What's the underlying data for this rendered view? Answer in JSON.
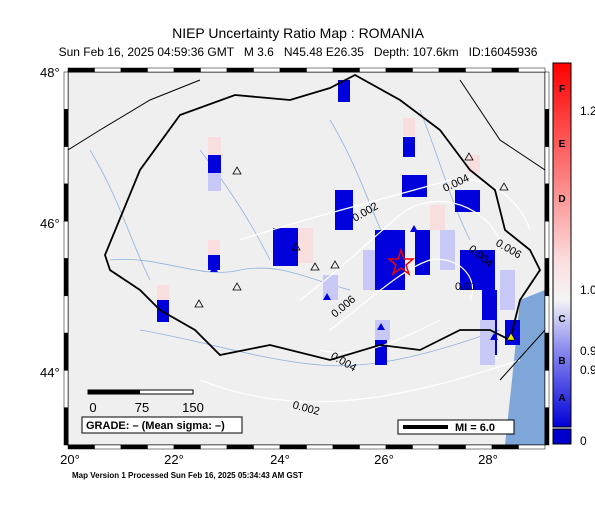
{
  "header": {
    "title": "NIEP Uncertainty Ratio Map : ROMANIA",
    "subtitle": "Sun Feb 16, 2025 04:59:36 GMT   M 3.6   N45.48 E26.35   Depth: 107.6km   ID:16045936"
  },
  "map": {
    "lat_labels": [
      "48°",
      "46°",
      "44°"
    ],
    "lon_labels": [
      "20°",
      "22°",
      "24°",
      "26°",
      "28°"
    ],
    "contour_labels": [
      "0.002",
      "0.004",
      "0.006",
      "0.004",
      "0.006",
      "0.002",
      "0.01",
      "0.004"
    ],
    "scale_labels": [
      "0",
      "75",
      "150"
    ],
    "grade": "GRADE: – (Mean sigma: –)",
    "mi": "MI = 6.0"
  },
  "colorbar": {
    "grades": [
      "F",
      "E",
      "D",
      "C",
      "B",
      "A"
    ],
    "values": [
      "1.2",
      "1.0",
      "0.9",
      "0.9",
      "0"
    ]
  },
  "footer": "Map Version 1 Processed Sun Feb 16, 2025 05:34:43 AM GST"
}
